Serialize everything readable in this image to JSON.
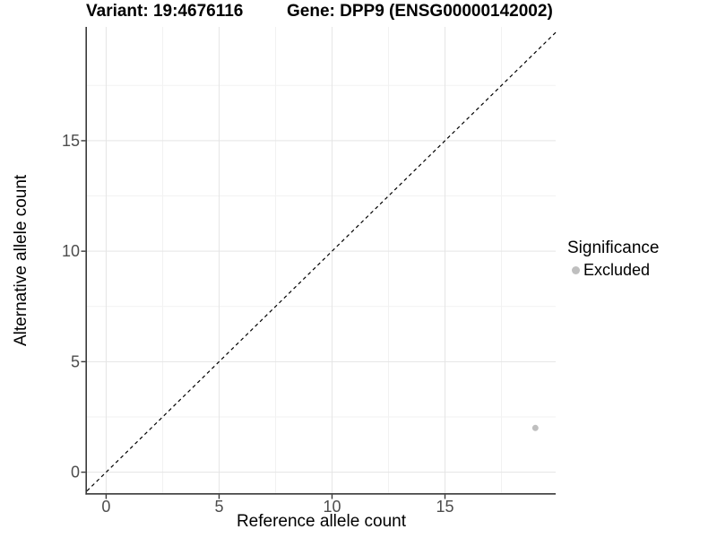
{
  "chart_data": {
    "type": "scatter",
    "title_left": "Variant: 19:4676116",
    "title_right": "Gene: DPP9 (ENSG00000142002)",
    "xlabel": "Reference allele count",
    "ylabel": "Alternative allele count",
    "xlim": [
      -0.85,
      19.9
    ],
    "ylim": [
      -0.95,
      20.15
    ],
    "x_major_ticks": [
      0,
      5,
      10,
      15
    ],
    "y_major_ticks": [
      0,
      5,
      10,
      15
    ],
    "x_minor_gridlines": [
      2.5,
      7.5,
      12.5,
      17.5
    ],
    "y_minor_gridlines": [
      2.5,
      7.5,
      12.5,
      17.5
    ],
    "grid": "major+minor",
    "series": [
      {
        "name": "Excluded",
        "color": "#bfbfbf",
        "marker": "circle",
        "points": [
          {
            "x": 19,
            "y": 2
          }
        ]
      }
    ],
    "reference_line": {
      "kind": "identity",
      "slope": 1,
      "intercept": 0,
      "line_style": "dashed",
      "color": "#000000"
    },
    "legend": {
      "title": "Significance",
      "position": "right",
      "items": [
        {
          "label": "Excluded",
          "color": "#bfbfbf",
          "marker": "circle"
        }
      ]
    },
    "colors": {
      "background": "#ffffff",
      "axis_line": "#3a3a3a",
      "tick_text": "#4d4d4d",
      "grid_major": "#e5e5e5",
      "grid_minor": "#f2f2f2",
      "point": "#bfbfbf"
    }
  }
}
